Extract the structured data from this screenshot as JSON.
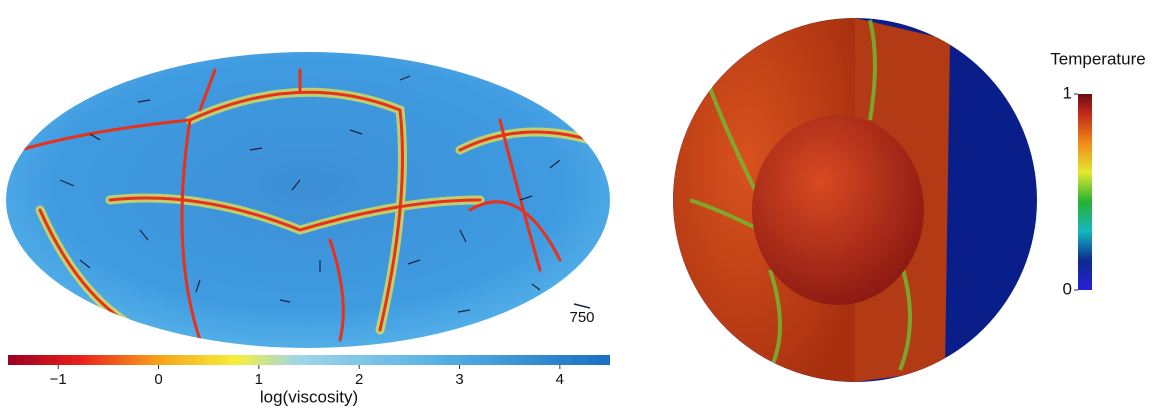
{
  "viscosity_map": {
    "velocity_scale_label": "750"
  },
  "viscosity_colorbar": {
    "label": "log(viscosity)",
    "lim": [
      -1.5,
      4.5
    ],
    "ticks": [
      {
        "value": -1,
        "label": "−1"
      },
      0,
      1,
      2,
      3,
      4
    ]
  },
  "temperature_colorbar": {
    "label": "Temperature",
    "lim": [
      0,
      1
    ],
    "ticks": [
      0,
      1
    ]
  }
}
